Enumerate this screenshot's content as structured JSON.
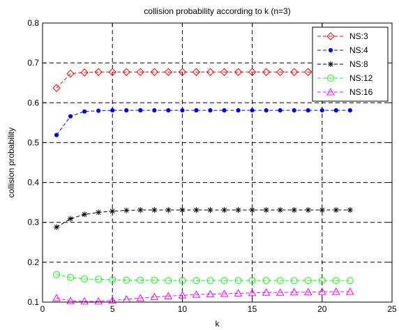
{
  "chart_data": {
    "type": "line",
    "title": "collision probability according to k (n=3)",
    "xlabel": "k",
    "ylabel": "collision probability",
    "xlim": [
      0,
      25
    ],
    "ylim": [
      0.1,
      0.8
    ],
    "xticks": [
      0,
      5,
      10,
      15,
      20,
      25
    ],
    "yticks": [
      0.1,
      0.2,
      0.3,
      0.4,
      0.5,
      0.6,
      0.7,
      0.8
    ],
    "grid": true,
    "grid_style": "dashed",
    "legend_position": "top-right",
    "x": [
      1,
      2,
      3,
      4,
      5,
      6,
      7,
      8,
      9,
      10,
      11,
      12,
      13,
      14,
      15,
      16,
      17,
      18,
      19,
      20,
      21,
      22
    ],
    "series": [
      {
        "name": "NS:3",
        "color": "#ff0000",
        "marker": "diamond",
        "values": [
          0.637,
          0.673,
          0.676,
          0.677,
          0.677,
          0.677,
          0.677,
          0.677,
          0.677,
          0.677,
          0.677,
          0.677,
          0.677,
          0.677,
          0.677,
          0.677,
          0.677,
          0.677,
          0.677,
          0.677,
          0.677,
          0.677
        ]
      },
      {
        "name": "NS:4",
        "color": "#0000ff",
        "marker": "dot",
        "values": [
          0.519,
          0.566,
          0.578,
          0.58,
          0.581,
          0.581,
          0.581,
          0.581,
          0.581,
          0.581,
          0.581,
          0.581,
          0.581,
          0.581,
          0.581,
          0.581,
          0.581,
          0.581,
          0.581,
          0.581,
          0.581,
          0.581
        ]
      },
      {
        "name": "NS:8",
        "color": "#000000",
        "marker": "star",
        "values": [
          0.288,
          0.309,
          0.32,
          0.325,
          0.328,
          0.33,
          0.331,
          0.331,
          0.331,
          0.331,
          0.331,
          0.331,
          0.331,
          0.331,
          0.331,
          0.331,
          0.331,
          0.331,
          0.331,
          0.331,
          0.331,
          0.331
        ]
      },
      {
        "name": "NS:12",
        "color": "#00ff00",
        "marker": "circle",
        "values": [
          0.169,
          0.162,
          0.158,
          0.157,
          0.156,
          0.155,
          0.155,
          0.155,
          0.154,
          0.154,
          0.154,
          0.154,
          0.154,
          0.154,
          0.154,
          0.154,
          0.154,
          0.154,
          0.154,
          0.154,
          0.154,
          0.154
        ]
      },
      {
        "name": "NS:16",
        "color": "#ff00ff",
        "marker": "triangle",
        "values": [
          0.11,
          0.103,
          0.102,
          0.102,
          0.104,
          0.107,
          0.11,
          0.113,
          0.115,
          0.117,
          0.119,
          0.12,
          0.121,
          0.122,
          0.123,
          0.124,
          0.124,
          0.125,
          0.125,
          0.126,
          0.126,
          0.126
        ]
      }
    ]
  }
}
